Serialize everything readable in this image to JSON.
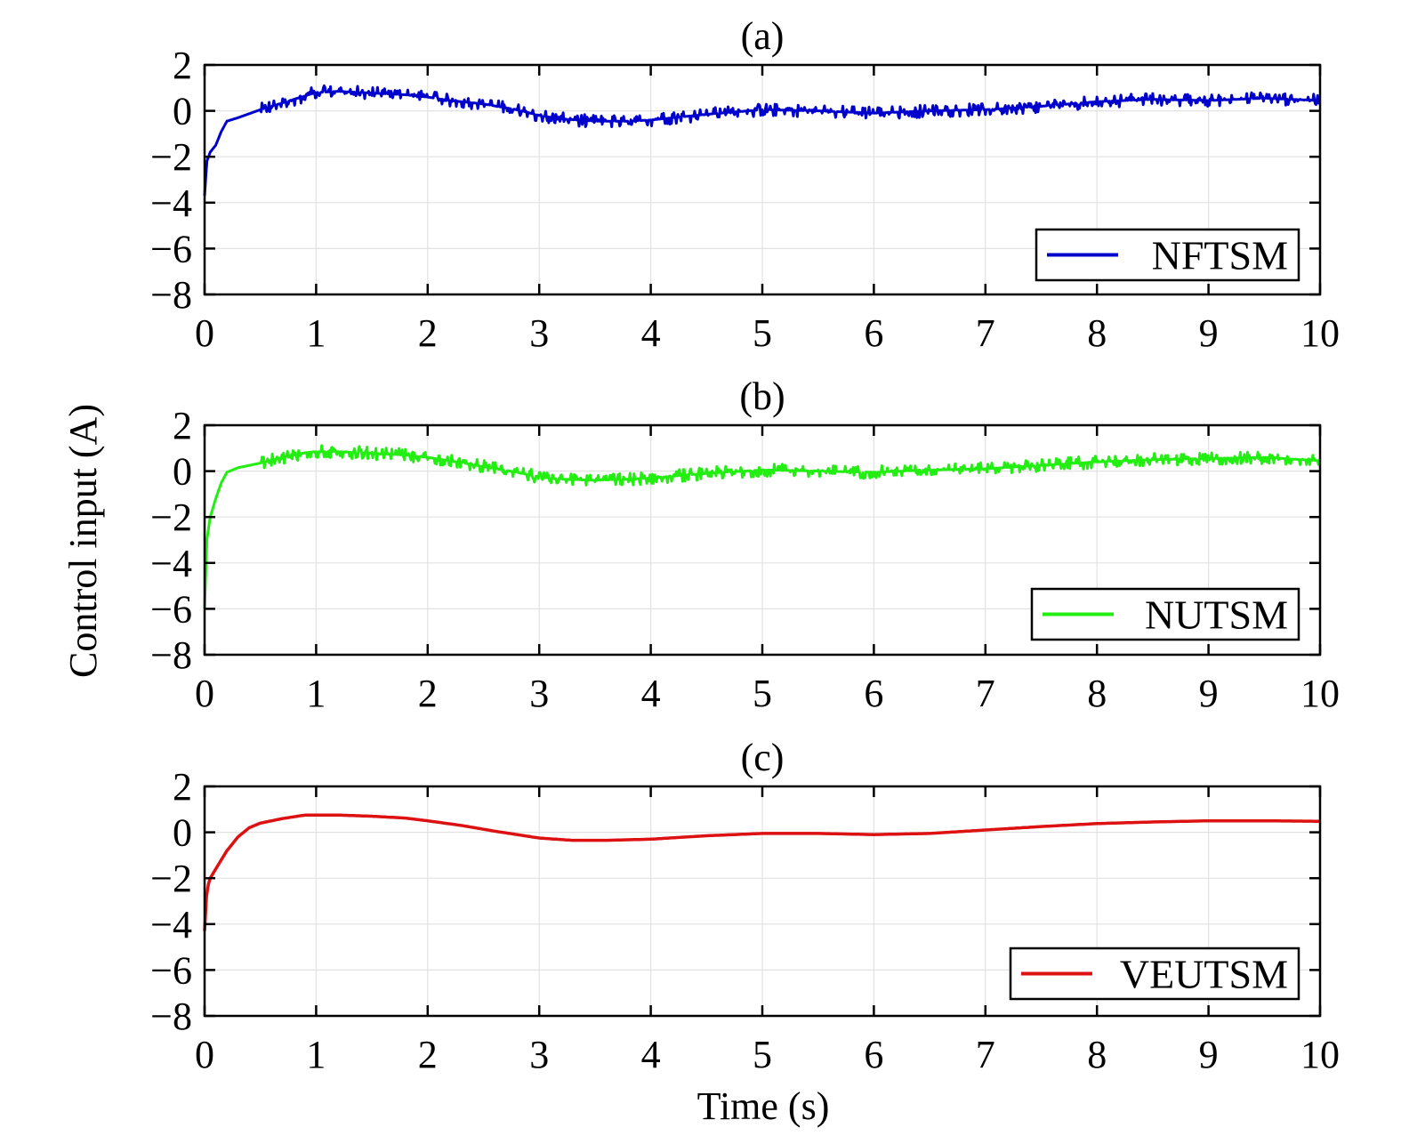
{
  "figure": {
    "ylabel": "Control input (A)",
    "xlabel": "Time (s)"
  },
  "chart_data": [
    {
      "type": "line",
      "title": "(a)",
      "xlim": [
        0,
        10
      ],
      "ylim": [
        -8,
        2
      ],
      "xticks": [
        "0",
        "1",
        "2",
        "3",
        "4",
        "5",
        "6",
        "7",
        "8",
        "9",
        "10"
      ],
      "yticks": [
        "2",
        "0",
        "−2",
        "−4",
        "−6",
        "−8"
      ],
      "grid": true,
      "legend_position": "bottom-right",
      "series": [
        {
          "name": "NFTSM",
          "color": "#0000cc",
          "chattering": true,
          "x": [
            0,
            0.02,
            0.05,
            0.1,
            0.15,
            0.2,
            0.3,
            0.5,
            0.7,
            0.9,
            1.0,
            1.2,
            1.4,
            1.6,
            1.8,
            2.0,
            2.2,
            2.5,
            2.8,
            3.0,
            3.2,
            3.5,
            3.8,
            4.0,
            4.5,
            5.0,
            5.5,
            6.0,
            6.5,
            7.0,
            7.5,
            8.0,
            8.5,
            9.0,
            9.5,
            10.0
          ],
          "y": [
            -3.7,
            -2.2,
            -1.8,
            -1.5,
            -0.9,
            -0.45,
            -0.3,
            0.05,
            0.35,
            0.65,
            0.8,
            0.85,
            0.8,
            0.75,
            0.7,
            0.6,
            0.45,
            0.3,
            0.05,
            -0.2,
            -0.35,
            -0.45,
            -0.45,
            -0.4,
            -0.15,
            0.05,
            0.0,
            -0.1,
            0.0,
            0.05,
            0.2,
            0.4,
            0.5,
            0.45,
            0.55,
            0.45
          ]
        }
      ]
    },
    {
      "type": "line",
      "title": "(b)",
      "xlim": [
        0,
        10
      ],
      "ylim": [
        -8,
        2
      ],
      "xticks": [
        "0",
        "1",
        "2",
        "3",
        "4",
        "5",
        "6",
        "7",
        "8",
        "9",
        "10"
      ],
      "yticks": [
        "2",
        "0",
        "−2",
        "−4",
        "−6",
        "−8"
      ],
      "grid": true,
      "legend_position": "bottom-right",
      "series": [
        {
          "name": "NUTSM",
          "color": "#22ee11",
          "chattering": true,
          "x": [
            0,
            0.02,
            0.05,
            0.1,
            0.15,
            0.2,
            0.3,
            0.5,
            0.7,
            0.9,
            1.0,
            1.2,
            1.4,
            1.6,
            1.8,
            2.0,
            2.2,
            2.5,
            2.8,
            3.0,
            3.2,
            3.5,
            3.8,
            4.0,
            4.5,
            5.0,
            5.5,
            6.0,
            6.5,
            7.0,
            7.5,
            8.0,
            8.5,
            9.0,
            9.5,
            10.0
          ],
          "y": [
            -6.0,
            -3.0,
            -2.0,
            -1.2,
            -0.5,
            -0.05,
            0.15,
            0.35,
            0.6,
            0.8,
            0.85,
            0.85,
            0.8,
            0.75,
            0.7,
            0.6,
            0.45,
            0.2,
            -0.05,
            -0.25,
            -0.35,
            -0.4,
            -0.35,
            -0.3,
            -0.1,
            0.05,
            0.0,
            -0.05,
            0.05,
            0.1,
            0.25,
            0.4,
            0.5,
            0.55,
            0.6,
            0.45
          ]
        }
      ]
    },
    {
      "type": "line",
      "title": "(c)",
      "xlim": [
        0,
        10
      ],
      "ylim": [
        -8,
        2
      ],
      "xticks": [
        "0",
        "1",
        "2",
        "3",
        "4",
        "5",
        "6",
        "7",
        "8",
        "9",
        "10"
      ],
      "yticks": [
        "2",
        "0",
        "−2",
        "−4",
        "−6",
        "−8"
      ],
      "grid": true,
      "legend_position": "bottom-right",
      "series": [
        {
          "name": "VEUTSM",
          "color": "#dd1111",
          "chattering": false,
          "x": [
            0,
            0.02,
            0.05,
            0.1,
            0.15,
            0.2,
            0.3,
            0.4,
            0.5,
            0.7,
            0.9,
            1.0,
            1.2,
            1.5,
            1.8,
            2.0,
            2.3,
            2.6,
            3.0,
            3.3,
            3.6,
            4.0,
            4.5,
            5.0,
            5.5,
            6.0,
            6.5,
            7.0,
            7.5,
            8.0,
            8.5,
            9.0,
            9.5,
            10.0
          ],
          "y": [
            -4.3,
            -2.5,
            -2.0,
            -1.6,
            -1.2,
            -0.8,
            -0.2,
            0.2,
            0.4,
            0.6,
            0.75,
            0.75,
            0.75,
            0.7,
            0.62,
            0.5,
            0.3,
            0.05,
            -0.25,
            -0.35,
            -0.35,
            -0.3,
            -0.15,
            -0.05,
            -0.05,
            -0.1,
            -0.05,
            0.1,
            0.25,
            0.38,
            0.45,
            0.5,
            0.5,
            0.48
          ]
        }
      ]
    }
  ]
}
